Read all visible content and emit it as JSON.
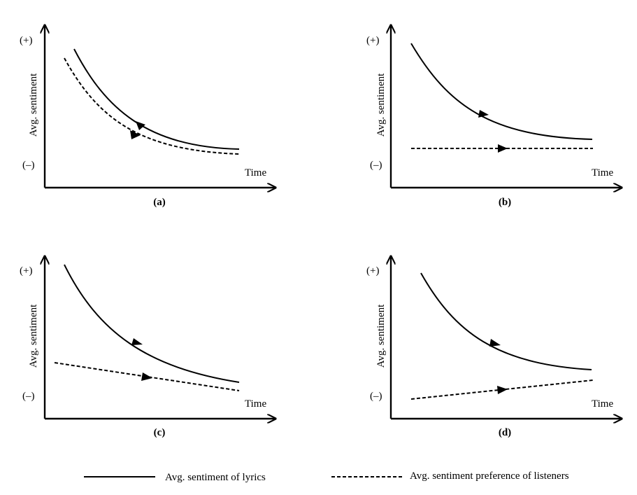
{
  "panels": [
    {
      "id": "a",
      "caption": "(a)",
      "y_axis_label": "Avg. sentiment",
      "y_top_label": "(+)",
      "y_bottom_label": "(–)",
      "x_axis_label": "Time",
      "lyrics": "decreasing, leveling off",
      "listeners": "decreasing, leveling off, slightly below lyrics"
    },
    {
      "id": "b",
      "caption": "(b)",
      "y_axis_label": "Avg. sentiment",
      "y_top_label": "(+)",
      "y_bottom_label": "(–)",
      "x_axis_label": "Time",
      "lyrics": "decreasing, leveling off",
      "listeners": "constant (flat)"
    },
    {
      "id": "c",
      "caption": "(c)",
      "y_axis_label": "Avg. sentiment",
      "y_top_label": "(+)",
      "y_bottom_label": "(–)",
      "x_axis_label": "Time",
      "lyrics": "decreasing",
      "listeners": "slowly decreasing"
    },
    {
      "id": "d",
      "caption": "(d)",
      "y_axis_label": "Avg. sentiment",
      "y_top_label": "(+)",
      "y_bottom_label": "(–)",
      "x_axis_label": "Time",
      "lyrics": "decreasing",
      "listeners": "slowly increasing"
    }
  ],
  "legend": {
    "lyrics_label": "Avg. sentiment of lyrics",
    "listeners_label": "Avg. sentiment preference of listeners"
  }
}
